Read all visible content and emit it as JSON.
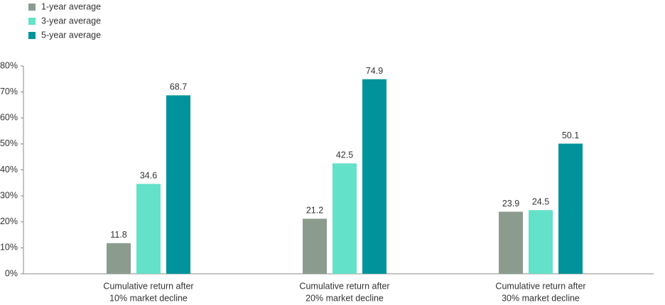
{
  "chart_data": {
    "type": "bar",
    "categories": [
      [
        "Cumulative return after",
        "10% market decline"
      ],
      [
        "Cumulative return after",
        "20% market decline"
      ],
      [
        "Cumulative return after",
        "30% market decline"
      ]
    ],
    "series": [
      {
        "name": "1-year average",
        "color": "#8b9c8f",
        "values": [
          11.8,
          21.2,
          23.9
        ]
      },
      {
        "name": "3-year average",
        "color": "#63e1c9",
        "values": [
          34.6,
          42.5,
          24.5
        ]
      },
      {
        "name": "5-year average",
        "color": "#00939b",
        "values": [
          68.7,
          74.9,
          50.1
        ]
      }
    ],
    "ylim": [
      0,
      80
    ],
    "yticks": [
      {
        "value": 0,
        "label": "0%"
      },
      {
        "value": 10,
        "label": "10%"
      },
      {
        "value": 20,
        "label": "20%"
      },
      {
        "value": 30,
        "label": "30%"
      },
      {
        "value": 40,
        "label": "40%"
      },
      {
        "value": 50,
        "label": "50%"
      },
      {
        "value": 60,
        "label": "60%"
      },
      {
        "value": 70,
        "label": "70%"
      },
      {
        "value": 80,
        "label": "80%"
      }
    ],
    "grid": false,
    "legend": "top-left"
  }
}
